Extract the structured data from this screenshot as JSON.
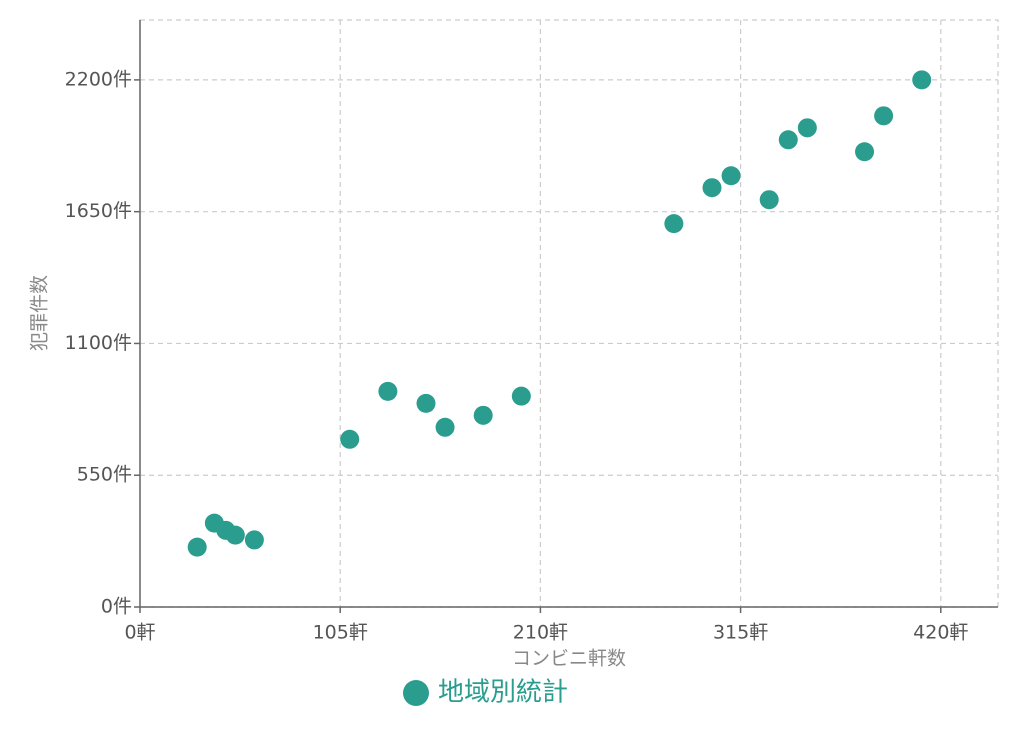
{
  "chart_data": {
    "type": "scatter",
    "x_label": "コンビニ軒数",
    "y_label": "犯罪件数",
    "xlim": [
      0,
      450
    ],
    "ylim": [
      0,
      2450
    ],
    "xticks": [
      {
        "value": 0,
        "label": "0軒"
      },
      {
        "value": 105,
        "label": "105軒"
      },
      {
        "value": 210,
        "label": "210軒"
      },
      {
        "value": 315,
        "label": "315軒"
      },
      {
        "value": 420,
        "label": "420軒"
      }
    ],
    "yticks": [
      {
        "value": 0,
        "label": "0件"
      },
      {
        "value": 550,
        "label": "550件"
      },
      {
        "value": 1100,
        "label": "1100件"
      },
      {
        "value": 1650,
        "label": "1650件"
      },
      {
        "value": 2200,
        "label": "2200件"
      }
    ],
    "grid": true,
    "series": [
      {
        "name": "地域別統計",
        "color": "#2a9d8f",
        "x": [
          30,
          39,
          45,
          50,
          60,
          110,
          130,
          150,
          160,
          180,
          200,
          280,
          300,
          310,
          330,
          340,
          350,
          380,
          390,
          410
        ],
        "values": [
          250,
          350,
          320,
          300,
          280,
          700,
          900,
          850,
          750,
          800,
          880,
          1600,
          1750,
          1800,
          1700,
          1950,
          2000,
          1900,
          2050,
          2200
        ]
      }
    ]
  }
}
